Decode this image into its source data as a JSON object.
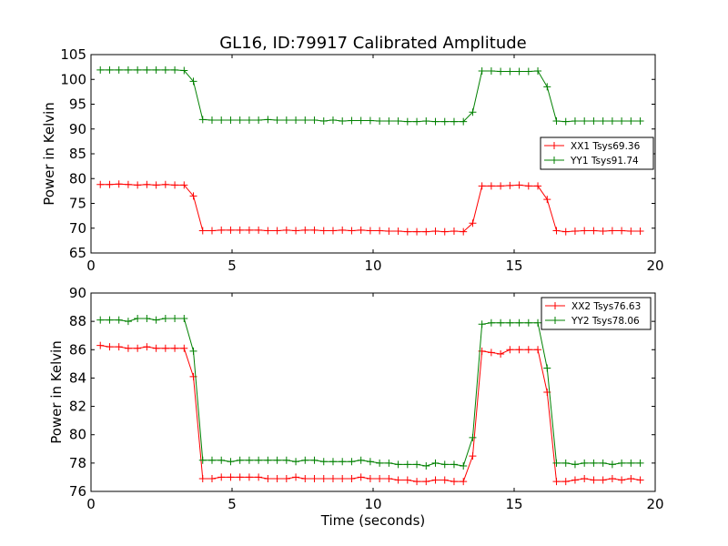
{
  "figure": {
    "title": "GL16, ID:79917 Calibrated Amplitude",
    "background": "#ffffff"
  },
  "chart_data": [
    {
      "type": "line",
      "title": "GL16, ID:79917 Calibrated Amplitude",
      "xlabel": "",
      "ylabel": "Power in Kelvin",
      "xlim": [
        0,
        20
      ],
      "ylim": [
        65,
        105
      ],
      "xticks": [
        0,
        5,
        10,
        15,
        20
      ],
      "yticks": [
        65,
        70,
        75,
        80,
        85,
        90,
        95,
        100,
        105
      ],
      "grid": false,
      "legend": "right",
      "x": [
        0.33,
        0.66,
        0.99,
        1.32,
        1.65,
        1.98,
        2.31,
        2.64,
        2.97,
        3.3,
        3.63,
        3.96,
        4.29,
        4.62,
        4.95,
        5.28,
        5.61,
        5.94,
        6.27,
        6.6,
        6.93,
        7.26,
        7.59,
        7.92,
        8.25,
        8.58,
        8.91,
        9.24,
        9.57,
        9.9,
        10.23,
        10.56,
        10.89,
        11.22,
        11.55,
        11.88,
        12.21,
        12.54,
        12.87,
        13.2,
        13.53,
        13.86,
        14.19,
        14.52,
        14.85,
        15.18,
        15.51,
        15.84,
        16.17,
        16.5,
        16.83,
        17.16,
        17.49,
        17.82,
        18.15,
        18.48,
        18.81,
        19.14,
        19.47
      ],
      "series": [
        {
          "name": "XX1 Tsys69.36",
          "color": "#ff0000",
          "values": [
            78.8,
            78.8,
            78.9,
            78.8,
            78.7,
            78.8,
            78.7,
            78.8,
            78.7,
            78.7,
            76.5,
            69.5,
            69.5,
            69.6,
            69.6,
            69.6,
            69.6,
            69.6,
            69.5,
            69.5,
            69.6,
            69.5,
            69.6,
            69.6,
            69.5,
            69.5,
            69.6,
            69.5,
            69.6,
            69.5,
            69.5,
            69.4,
            69.4,
            69.3,
            69.3,
            69.3,
            69.4,
            69.3,
            69.4,
            69.3,
            71.0,
            78.5,
            78.5,
            78.5,
            78.6,
            78.7,
            78.5,
            78.5,
            75.8,
            69.5,
            69.3,
            69.4,
            69.5,
            69.5,
            69.4,
            69.5,
            69.5,
            69.4,
            69.4
          ]
        },
        {
          "name": "YY1 Tsys91.74",
          "color": "#008000",
          "values": [
            101.9,
            101.9,
            101.9,
            101.9,
            101.9,
            101.9,
            101.9,
            101.9,
            101.9,
            101.8,
            99.6,
            91.9,
            91.8,
            91.8,
            91.8,
            91.8,
            91.8,
            91.8,
            91.9,
            91.8,
            91.8,
            91.8,
            91.8,
            91.8,
            91.6,
            91.8,
            91.6,
            91.7,
            91.7,
            91.7,
            91.6,
            91.6,
            91.6,
            91.5,
            91.5,
            91.6,
            91.5,
            91.5,
            91.5,
            91.5,
            93.4,
            101.7,
            101.7,
            101.6,
            101.6,
            101.6,
            101.6,
            101.7,
            98.5,
            91.6,
            91.5,
            91.6,
            91.6,
            91.6,
            91.6,
            91.6,
            91.6,
            91.6,
            91.6
          ]
        }
      ]
    },
    {
      "type": "line",
      "title": "",
      "xlabel": "Time (seconds)",
      "ylabel": "Power in Kelvin",
      "xlim": [
        0,
        20
      ],
      "ylim": [
        76,
        90
      ],
      "xticks": [
        0,
        5,
        10,
        15,
        20
      ],
      "yticks": [
        76,
        78,
        80,
        82,
        84,
        86,
        88,
        90
      ],
      "grid": false,
      "legend": "top-right",
      "x": [
        0.33,
        0.66,
        0.99,
        1.32,
        1.65,
        1.98,
        2.31,
        2.64,
        2.97,
        3.3,
        3.63,
        3.96,
        4.29,
        4.62,
        4.95,
        5.28,
        5.61,
        5.94,
        6.27,
        6.6,
        6.93,
        7.26,
        7.59,
        7.92,
        8.25,
        8.58,
        8.91,
        9.24,
        9.57,
        9.9,
        10.23,
        10.56,
        10.89,
        11.22,
        11.55,
        11.88,
        12.21,
        12.54,
        12.87,
        13.2,
        13.53,
        13.86,
        14.19,
        14.52,
        14.85,
        15.18,
        15.51,
        15.84,
        16.17,
        16.5,
        16.83,
        17.16,
        17.49,
        17.82,
        18.15,
        18.48,
        18.81,
        19.14,
        19.47
      ],
      "series": [
        {
          "name": "XX2 Tsys76.63",
          "color": "#ff0000",
          "values": [
            86.3,
            86.2,
            86.2,
            86.1,
            86.1,
            86.2,
            86.1,
            86.1,
            86.1,
            86.1,
            84.1,
            76.9,
            76.9,
            77.0,
            77.0,
            77.0,
            77.0,
            77.0,
            76.9,
            76.9,
            76.9,
            77.0,
            76.9,
            76.9,
            76.9,
            76.9,
            76.9,
            76.9,
            77.0,
            76.9,
            76.9,
            76.9,
            76.8,
            76.8,
            76.7,
            76.7,
            76.8,
            76.8,
            76.7,
            76.7,
            78.5,
            85.9,
            85.8,
            85.7,
            86.0,
            86.0,
            86.0,
            86.0,
            83.0,
            76.7,
            76.7,
            76.8,
            76.9,
            76.8,
            76.8,
            76.9,
            76.8,
            76.9,
            76.8
          ]
        },
        {
          "name": "YY2 Tsys78.06",
          "color": "#008000",
          "values": [
            88.1,
            88.1,
            88.1,
            88.0,
            88.2,
            88.2,
            88.1,
            88.2,
            88.2,
            88.2,
            85.9,
            78.2,
            78.2,
            78.2,
            78.1,
            78.2,
            78.2,
            78.2,
            78.2,
            78.2,
            78.2,
            78.1,
            78.2,
            78.2,
            78.1,
            78.1,
            78.1,
            78.1,
            78.2,
            78.1,
            78.0,
            78.0,
            77.9,
            77.9,
            77.9,
            77.8,
            78.0,
            77.9,
            77.9,
            77.8,
            79.8,
            87.8,
            87.9,
            87.9,
            87.9,
            87.9,
            87.9,
            87.9,
            84.7,
            78.0,
            78.0,
            77.9,
            78.0,
            78.0,
            78.0,
            77.9,
            78.0,
            78.0,
            78.0
          ]
        }
      ]
    }
  ]
}
